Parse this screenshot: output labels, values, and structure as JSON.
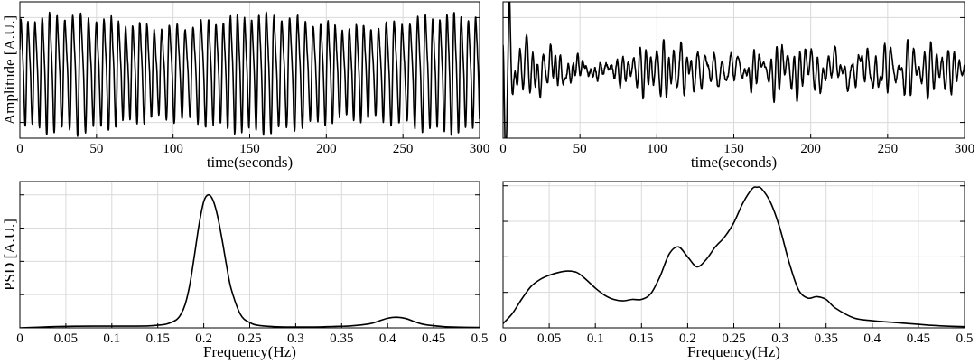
{
  "chart_data": [
    {
      "id": "ts-left",
      "type": "line",
      "xlabel": "time(seconds)",
      "ylabel": "Amplitude [A.U.]",
      "xlim": [
        0,
        300
      ],
      "xticks": [
        0,
        50,
        100,
        150,
        200,
        250,
        300
      ],
      "xtick_labels": [
        "0",
        "50",
        "100",
        "150",
        "200",
        "250",
        "300"
      ],
      "ylim": [
        -1.3,
        1.3
      ],
      "yticks": [
        -1,
        0,
        1
      ],
      "show_yticklabels": false,
      "grid": true,
      "signal": {
        "kind": "oscillation",
        "frequency_hz": 0.205,
        "amplitude": 0.95,
        "duration_s": 300,
        "samples_per_second": 6
      }
    },
    {
      "id": "ts-right",
      "type": "line",
      "xlabel": "time(seconds)",
      "ylabel": "",
      "xlim": [
        0,
        300
      ],
      "xticks": [
        0,
        50,
        100,
        150,
        200,
        250,
        300
      ],
      "xtick_labels": [
        "0",
        "50",
        "100",
        "150",
        "200",
        "250",
        "300"
      ],
      "ylim": [
        -1.3,
        1.3
      ],
      "yticks": [
        -1,
        0,
        1
      ],
      "show_yticklabels": false,
      "grid": true,
      "signal": {
        "kind": "broadband",
        "components_hz": [
          0.06,
          0.19,
          0.27,
          0.34
        ],
        "amplitude": 0.45,
        "duration_s": 300,
        "samples_per_second": 6
      }
    },
    {
      "id": "psd-left",
      "type": "line",
      "xlabel": "Frequency(Hz)",
      "ylabel": "PSD [A.U.]",
      "xlim": [
        0,
        0.5
      ],
      "xticks": [
        0,
        0.05,
        0.1,
        0.15,
        0.2,
        0.25,
        0.3,
        0.35,
        0.4,
        0.45,
        0.5
      ],
      "xtick_labels": [
        "0",
        "0.05",
        "0.1",
        "0.15",
        "0.2",
        "0.25",
        "0.3",
        "0.35",
        "0.4",
        "0.45",
        "0.5"
      ],
      "ylim": [
        0,
        1.1
      ],
      "yticks": [
        0.25,
        0.5,
        0.75,
        1.0
      ],
      "show_yticklabels": false,
      "grid": true,
      "series": [
        {
          "x": [
            0,
            0.02,
            0.04,
            0.06,
            0.08,
            0.1,
            0.12,
            0.14,
            0.15,
            0.16,
            0.17,
            0.175,
            0.18,
            0.185,
            0.19,
            0.195,
            0.2,
            0.205,
            0.21,
            0.215,
            0.22,
            0.225,
            0.23,
            0.24,
            0.25,
            0.26,
            0.28,
            0.3,
            0.32,
            0.34,
            0.36,
            0.38,
            0.39,
            0.4,
            0.41,
            0.42,
            0.43,
            0.44,
            0.46,
            0.48,
            0.5
          ],
          "y": [
            0.0,
            0.005,
            0.01,
            0.012,
            0.013,
            0.013,
            0.013,
            0.015,
            0.02,
            0.03,
            0.06,
            0.1,
            0.18,
            0.33,
            0.55,
            0.78,
            0.95,
            1.0,
            0.96,
            0.84,
            0.66,
            0.46,
            0.29,
            0.1,
            0.04,
            0.018,
            0.008,
            0.006,
            0.007,
            0.01,
            0.015,
            0.03,
            0.05,
            0.072,
            0.08,
            0.07,
            0.045,
            0.025,
            0.01,
            0.005,
            0.003
          ]
        }
      ]
    },
    {
      "id": "psd-right",
      "type": "line",
      "xlabel": "Frequency(Hz)",
      "ylabel": "",
      "xlim": [
        0,
        0.5
      ],
      "xticks": [
        0,
        0.05,
        0.1,
        0.15,
        0.2,
        0.25,
        0.3,
        0.35,
        0.4,
        0.45,
        0.5
      ],
      "xtick_labels": [
        "0",
        "0.05",
        "0.1",
        "0.15",
        "0.2",
        "0.25",
        "0.3",
        "0.35",
        "0.4",
        "0.45",
        "0.5"
      ],
      "ylim": [
        0,
        1.03
      ],
      "yticks": [
        0.25,
        0.5,
        0.75,
        1.0
      ],
      "show_yticklabels": false,
      "grid": true,
      "series": [
        {
          "x": [
            0,
            0.01,
            0.02,
            0.03,
            0.04,
            0.05,
            0.06,
            0.07,
            0.08,
            0.09,
            0.1,
            0.11,
            0.12,
            0.13,
            0.14,
            0.15,
            0.16,
            0.17,
            0.18,
            0.19,
            0.2,
            0.21,
            0.22,
            0.23,
            0.24,
            0.25,
            0.26,
            0.27,
            0.275,
            0.28,
            0.29,
            0.3,
            0.31,
            0.32,
            0.33,
            0.34,
            0.35,
            0.36,
            0.38,
            0.4,
            0.42,
            0.44,
            0.46,
            0.48,
            0.5
          ],
          "y": [
            0.03,
            0.1,
            0.2,
            0.29,
            0.34,
            0.37,
            0.39,
            0.4,
            0.39,
            0.34,
            0.28,
            0.23,
            0.2,
            0.19,
            0.2,
            0.2,
            0.24,
            0.36,
            0.52,
            0.57,
            0.5,
            0.43,
            0.48,
            0.57,
            0.64,
            0.74,
            0.88,
            0.98,
            0.99,
            0.98,
            0.88,
            0.7,
            0.46,
            0.27,
            0.21,
            0.22,
            0.2,
            0.14,
            0.07,
            0.05,
            0.04,
            0.03,
            0.02,
            0.012,
            0.008
          ]
        }
      ]
    }
  ]
}
